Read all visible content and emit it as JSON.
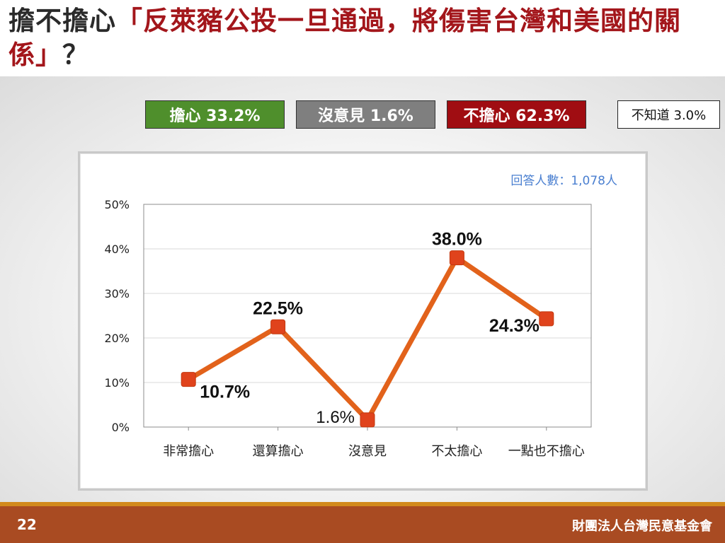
{
  "title": {
    "plain": "擔不擔心",
    "highlight": "「反萊豬公投一旦通過，將傷害台灣和美國的關係」",
    "suffix": "？"
  },
  "summary": {
    "worried": "擔心 33.2%",
    "no_opinion": "沒意見 1.6%",
    "not_worried": "不擔心 62.3%",
    "dont_know": "不知道 3.0%"
  },
  "respondents": "回答人數：1,078人",
  "chart_data": {
    "type": "line",
    "categories": [
      "非常擔心",
      "還算擔心",
      "沒意見",
      "不太擔心",
      "一點也不擔心"
    ],
    "values": [
      10.7,
      22.5,
      1.6,
      38.0,
      24.3
    ],
    "value_labels": [
      "10.7%",
      "22.5%",
      "1.6%",
      "38.0%",
      "24.3%"
    ],
    "ylim": [
      0,
      50
    ],
    "yticks": [
      "0%",
      "10%",
      "20%",
      "30%",
      "40%",
      "50%"
    ],
    "grid": true,
    "line_color": "#e2621b",
    "marker_color": "#e0431c"
  },
  "footer": {
    "page": "22",
    "org": "財團法人台灣民意基金會"
  }
}
